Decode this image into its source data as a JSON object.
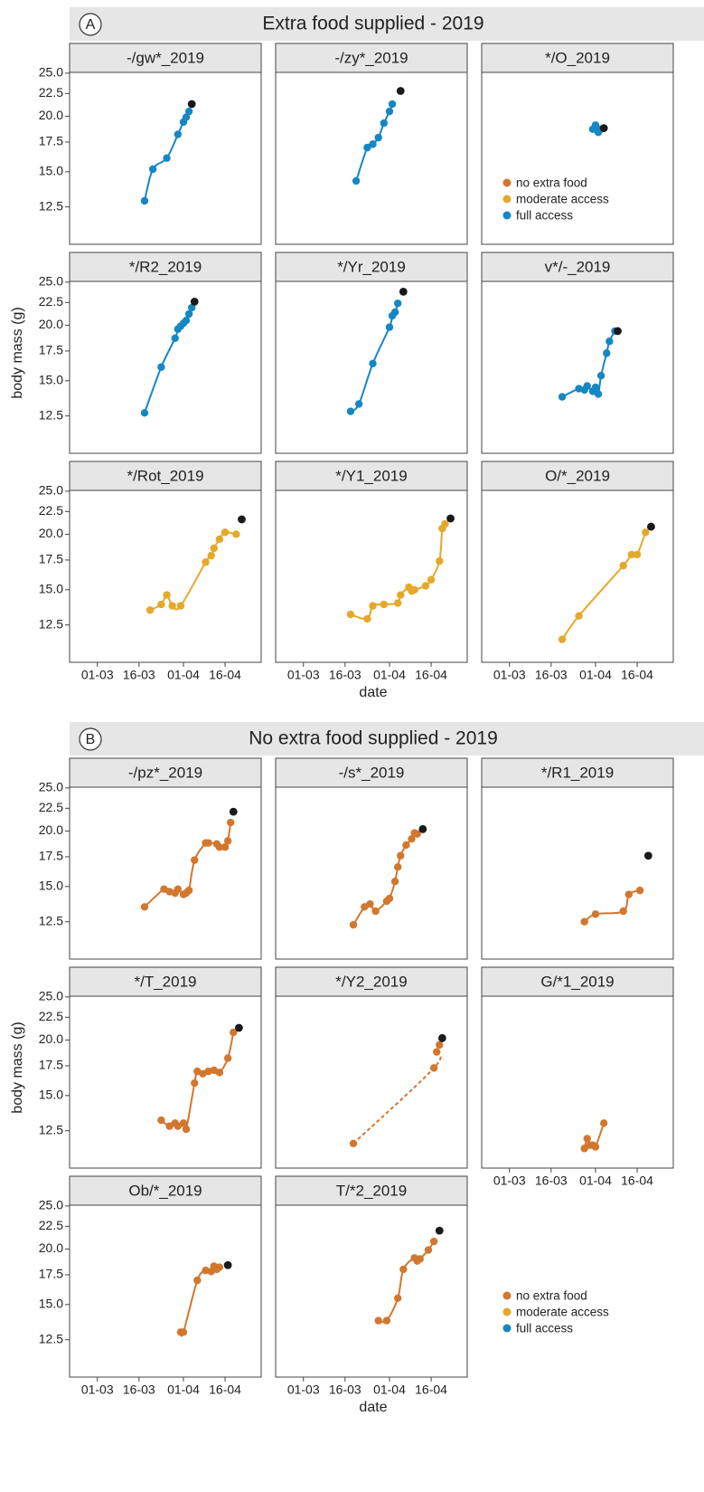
{
  "axes": {
    "xlim": [
      "19-02",
      "29-04"
    ],
    "xticks": [
      "01-03",
      "16-03",
      "01-04",
      "16-04"
    ],
    "ylim": [
      10.3,
      25.1
    ],
    "y_scale": "log",
    "yticks": [
      12.5,
      {
        "value": 15,
        "label": "15.0"
      },
      17.5,
      {
        "value": 20,
        "label": "20.0"
      },
      22.5,
      {
        "value": 25,
        "label": "25.0"
      }
    ]
  },
  "last_point_color": "#1a1a1a",
  "sections": [
    {
      "label": "A",
      "title": "Extra food supplied - 2019",
      "y_label": "body mass (g)",
      "x_label": "date",
      "legend": [
        {
          "name": "no extra food",
          "color": "#d2772e"
        },
        {
          "name": "moderate access",
          "color": "#e5a82a"
        },
        {
          "name": "full access",
          "color": "#1587c4"
        }
      ],
      "chart_data": [
        {
          "type": "line",
          "title": "-/gw*_2019",
          "color": "#1587c4",
          "x": [
            "18-03",
            "21-03",
            "26-03",
            "30-03",
            "01-04",
            "02-04",
            "03-04"
          ],
          "values": [
            12.9,
            15.2,
            16.1,
            18.2,
            19.4,
            19.9,
            20.5
          ],
          "last": {
            "x": "04-04",
            "value": 21.3
          }
        },
        {
          "type": "line",
          "title": "-/zy*_2019",
          "color": "#1587c4",
          "x": [
            "20-03",
            "24-03",
            "26-03",
            "28-03",
            "30-03",
            "01-04",
            "02-04"
          ],
          "values": [
            14.3,
            17.0,
            17.3,
            17.9,
            19.3,
            20.5,
            21.3
          ],
          "last": {
            "x": "05-04",
            "value": 22.8
          }
        },
        {
          "type": "line",
          "title": "*/O_2019",
          "color": "#1587c4",
          "x": [
            "31-03",
            "01-04",
            "02-04",
            "03-04"
          ],
          "values": [
            18.7,
            19.1,
            18.4,
            18.7
          ],
          "last": {
            "x": "04-04",
            "value": 18.8
          }
        },
        {
          "type": "line",
          "title": "*/R2_2019",
          "color": "#1587c4",
          "x": [
            "18-03",
            "24-03",
            "29-03",
            "30-03",
            "31-03",
            "01-04",
            "02-04",
            "03-04",
            "04-04"
          ],
          "values": [
            12.7,
            16.1,
            18.7,
            19.6,
            19.9,
            20.2,
            20.5,
            21.2,
            21.9
          ],
          "last": {
            "x": "05-04",
            "value": 22.6
          }
        },
        {
          "type": "line",
          "title": "*/Yr_2019",
          "color": "#1587c4",
          "x": [
            "18-03",
            "21-03",
            "26-03",
            "01-04",
            "02-04",
            "03-04",
            "04-04"
          ],
          "values": [
            12.8,
            13.3,
            16.4,
            19.8,
            21.0,
            21.4,
            22.4
          ],
          "last": {
            "x": "06-04",
            "value": 23.8
          }
        },
        {
          "type": "line",
          "title": "v*/-_2019",
          "color": "#1587c4",
          "x": [
            "20-03",
            "26-03",
            "28-03",
            "29-03",
            "31-03",
            "01-04",
            "02-04",
            "03-04",
            "05-04",
            "06-04",
            "08-04"
          ],
          "values": [
            13.8,
            14.4,
            14.3,
            14.6,
            14.2,
            14.5,
            14.0,
            15.4,
            17.3,
            18.4,
            19.4
          ],
          "last": {
            "x": "09-04",
            "value": 19.4
          }
        },
        {
          "type": "line",
          "title": "*/Rot_2019",
          "color": "#e5a82a",
          "x": [
            "20-03",
            "24-03",
            "26-03",
            "28-03",
            "31-03",
            "09-04",
            "11-04",
            "12-04",
            "14-04",
            "16-04",
            "20-04"
          ],
          "values": [
            13.5,
            13.9,
            14.6,
            13.8,
            13.8,
            17.3,
            17.9,
            18.6,
            19.5,
            20.2,
            20.0
          ],
          "last": {
            "x": "22-04",
            "value": 21.6
          }
        },
        {
          "type": "line",
          "title": "*/Y1_2019",
          "color": "#e5a82a",
          "x": [
            "18-03",
            "24-03",
            "26-03",
            "30-03",
            "04-04",
            "05-04",
            "08-04",
            "09-04",
            "10-04",
            "14-04",
            "16-04",
            "19-04",
            "20-04",
            "21-04"
          ],
          "values": [
            13.2,
            12.9,
            13.8,
            13.9,
            14.0,
            14.6,
            15.2,
            14.9,
            15.0,
            15.3,
            15.8,
            17.4,
            20.6,
            21.1
          ],
          "last": {
            "x": "23-04",
            "value": 21.7
          }
        },
        {
          "type": "line",
          "title": "O/*_2019",
          "color": "#e5a82a",
          "x": [
            "20-03",
            "26-03",
            "11-04",
            "14-04",
            "16-04",
            "19-04"
          ],
          "values": [
            11.6,
            13.1,
            17.0,
            18.0,
            18.0,
            20.2
          ],
          "last": {
            "x": "21-04",
            "value": 20.8
          }
        }
      ]
    },
    {
      "label": "B",
      "title": "No extra food supplied - 2019",
      "y_label": "body mass (g)",
      "x_label": "date",
      "legend": [
        {
          "name": "no extra food",
          "color": "#d2772e"
        },
        {
          "name": "moderate access",
          "color": "#e5a82a"
        },
        {
          "name": "full access",
          "color": "#1587c4"
        }
      ],
      "chart_data": [
        {
          "type": "line",
          "title": "-/pz*_2019",
          "color": "#d2772e",
          "x": [
            "18-03",
            "25-03",
            "27-03",
            "29-03",
            "30-03",
            "01-04",
            "02-04",
            "03-04",
            "05-04",
            "09-04",
            "10-04",
            "13-04",
            "14-04",
            "16-04",
            "17-04",
            "18-04"
          ],
          "values": [
            13.5,
            14.8,
            14.6,
            14.5,
            14.8,
            14.4,
            14.5,
            14.7,
            17.2,
            18.8,
            18.8,
            18.7,
            18.4,
            18.4,
            19.0,
            20.9
          ],
          "last": {
            "x": "19-04",
            "value": 22.1
          }
        },
        {
          "type": "line",
          "title": "-/s*_2019",
          "color": "#d2772e",
          "x": [
            "19-03",
            "23-03",
            "25-03",
            "27-03",
            "31-03",
            "01-04",
            "03-04",
            "04-04",
            "05-04",
            "07-04",
            "09-04",
            "10-04",
            "11-04"
          ],
          "values": [
            12.3,
            13.5,
            13.7,
            13.2,
            13.9,
            14.1,
            15.4,
            16.6,
            17.6,
            18.6,
            19.2,
            19.8,
            19.7
          ],
          "last": {
            "x": "13-04",
            "value": 20.2
          }
        },
        {
          "type": "line",
          "title": "*/R1_2019",
          "color": "#d2772e",
          "x": [
            "28-03",
            "01-04",
            "11-04",
            "13-04",
            "17-04"
          ],
          "values": [
            12.5,
            13.0,
            13.2,
            14.4,
            14.7
          ],
          "last": {
            "x": "20-04",
            "value": 17.6
          }
        },
        {
          "type": "line",
          "title": "*/T_2019",
          "color": "#d2772e",
          "x": [
            "24-03",
            "27-03",
            "29-03",
            "30-03",
            "01-04",
            "02-04",
            "05-04",
            "06-04",
            "08-04",
            "10-04",
            "12-04",
            "14-04",
            "17-04",
            "19-04"
          ],
          "values": [
            13.2,
            12.8,
            13.0,
            12.8,
            13.0,
            12.6,
            16.0,
            17.0,
            16.8,
            17.0,
            17.1,
            16.9,
            18.2,
            20.8
          ],
          "last": {
            "x": "21-04",
            "value": 21.3
          }
        },
        {
          "type": "line",
          "title": "*/Y2_2019",
          "color": "#d2772e",
          "line_style": "dashed",
          "x": [
            "19-03",
            "17-04",
            "18-04",
            "19-04"
          ],
          "values": [
            11.7,
            17.3,
            18.8,
            19.5
          ],
          "last": {
            "x": "20-04",
            "value": 20.2
          }
        },
        {
          "type": "line",
          "title": "G/*1_2019",
          "color": "#d2772e",
          "x": [
            "28-03",
            "29-03",
            "30-03",
            "31-03",
            "01-04",
            "04-04"
          ],
          "values": [
            11.4,
            12.0,
            11.6,
            11.6,
            11.5,
            13.0
          ]
        },
        {
          "type": "line",
          "title": "Ob/*_2019",
          "color": "#d2772e",
          "x": [
            "31-03",
            "01-04",
            "06-04",
            "09-04",
            "11-04",
            "12-04",
            "13-04",
            "14-04"
          ],
          "values": [
            13.0,
            13.0,
            17.0,
            17.9,
            17.8,
            18.3,
            18.0,
            18.2
          ],
          "last": {
            "x": "17-04",
            "value": 18.4
          }
        },
        {
          "type": "line",
          "title": "T/*2_2019",
          "color": "#d2772e",
          "x": [
            "28-03",
            "31-03",
            "04-04",
            "06-04",
            "10-04",
            "11-04",
            "12-04",
            "15-04",
            "17-04"
          ],
          "values": [
            13.8,
            13.8,
            15.5,
            18.0,
            19.1,
            18.8,
            19.0,
            19.9,
            20.8
          ],
          "last": {
            "x": "19-04",
            "value": 22.0
          }
        }
      ]
    }
  ]
}
